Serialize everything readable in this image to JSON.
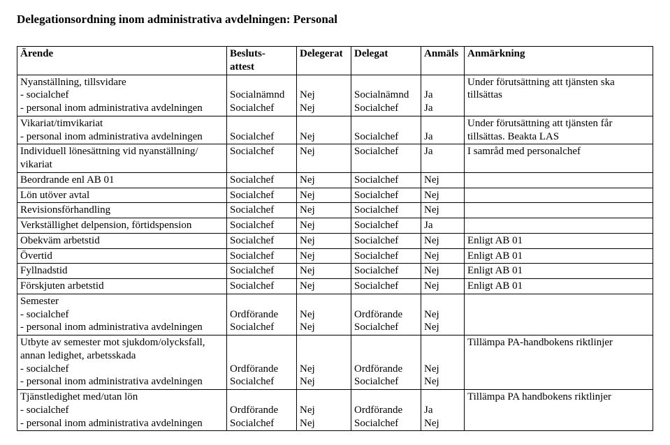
{
  "title": "Delegationsordning inom administrativa avdelningen: Personal",
  "headers": {
    "c1": "Ärende",
    "c2_l1": "Besluts-",
    "c2_l2": "attest",
    "c3": "Delegerat",
    "c4": "Delegat",
    "c5": "Anmäls",
    "c6": "Anmärkning"
  },
  "rows": [
    {
      "arende_lines": [
        "Nyanställning, tillsvidare",
        "- socialchef",
        "- personal inom administrativa avdelningen"
      ],
      "beslut_lines": [
        "",
        "Socialnämnd",
        "Socialchef"
      ],
      "delegerat_lines": [
        "",
        "Nej",
        "Nej"
      ],
      "delegat_lines": [
        "",
        "Socialnämnd",
        "Socialchef"
      ],
      "anmals_lines": [
        "",
        "Ja",
        "Ja"
      ],
      "anm_lines": [
        "Under förutsättning att tjänsten ska",
        "tillsättas"
      ]
    },
    {
      "arende_lines": [
        "Vikariat/timvikariat",
        "- personal inom administrativa avdelningen"
      ],
      "beslut_lines": [
        "",
        "Socialchef"
      ],
      "delegerat_lines": [
        "",
        "Nej"
      ],
      "delegat_lines": [
        "",
        "Socialchef"
      ],
      "anmals_lines": [
        "",
        "Ja"
      ],
      "anm_lines": [
        "Under förutsättning att tjänsten får",
        "tillsättas. Beakta LAS"
      ]
    },
    {
      "arende_lines": [
        "Individuell lönesättning vid nyanställning/",
        "vikariat"
      ],
      "beslut_lines": [
        "Socialchef"
      ],
      "delegerat_lines": [
        "Nej"
      ],
      "delegat_lines": [
        "Socialchef"
      ],
      "anmals_lines": [
        "Ja"
      ],
      "anm_lines": [
        "I samråd med personalchef"
      ]
    },
    {
      "arende_lines": [
        "Beordrande enl AB 01"
      ],
      "beslut_lines": [
        "Socialchef"
      ],
      "delegerat_lines": [
        "Nej"
      ],
      "delegat_lines": [
        "Socialchef"
      ],
      "anmals_lines": [
        "Nej"
      ],
      "anm_lines": [
        ""
      ]
    },
    {
      "arende_lines": [
        "Lön utöver avtal"
      ],
      "beslut_lines": [
        "Socialchef"
      ],
      "delegerat_lines": [
        "Nej"
      ],
      "delegat_lines": [
        "Socialchef"
      ],
      "anmals_lines": [
        "Nej"
      ],
      "anm_lines": [
        ""
      ]
    },
    {
      "arende_lines": [
        "Revisionsförhandling"
      ],
      "beslut_lines": [
        "Socialchef"
      ],
      "delegerat_lines": [
        "Nej"
      ],
      "delegat_lines": [
        "Socialchef"
      ],
      "anmals_lines": [
        "Nej"
      ],
      "anm_lines": [
        ""
      ]
    },
    {
      "arende_lines": [
        "Verkställighet delpension, förtidspension"
      ],
      "beslut_lines": [
        "Socialchef"
      ],
      "delegerat_lines": [
        "Nej"
      ],
      "delegat_lines": [
        "Socialchef"
      ],
      "anmals_lines": [
        "Ja"
      ],
      "anm_lines": [
        ""
      ]
    },
    {
      "arende_lines": [
        "Obekväm arbetstid"
      ],
      "beslut_lines": [
        "Socialchef"
      ],
      "delegerat_lines": [
        "Nej"
      ],
      "delegat_lines": [
        "Socialchef"
      ],
      "anmals_lines": [
        "Nej"
      ],
      "anm_lines": [
        "Enligt AB 01"
      ]
    },
    {
      "arende_lines": [
        "Övertid"
      ],
      "beslut_lines": [
        "Socialchef"
      ],
      "delegerat_lines": [
        "Nej"
      ],
      "delegat_lines": [
        "Socialchef"
      ],
      "anmals_lines": [
        "Nej"
      ],
      "anm_lines": [
        "Enligt AB 01"
      ]
    },
    {
      "arende_lines": [
        "Fyllnadstid"
      ],
      "beslut_lines": [
        "Socialchef"
      ],
      "delegerat_lines": [
        "Nej"
      ],
      "delegat_lines": [
        "Socialchef"
      ],
      "anmals_lines": [
        "Nej"
      ],
      "anm_lines": [
        "Enligt AB 01"
      ]
    },
    {
      "arende_lines": [
        "Förskjuten arbetstid"
      ],
      "beslut_lines": [
        "Socialchef"
      ],
      "delegerat_lines": [
        "Nej"
      ],
      "delegat_lines": [
        "Socialchef"
      ],
      "anmals_lines": [
        "Nej"
      ],
      "anm_lines": [
        "Enligt AB 01"
      ]
    },
    {
      "arende_lines": [
        "Semester",
        "-   socialchef",
        "-   personal inom administrativa avdelningen"
      ],
      "beslut_lines": [
        "",
        "Ordförande",
        "Socialchef"
      ],
      "delegerat_lines": [
        "",
        "Nej",
        "Nej"
      ],
      "delegat_lines": [
        "",
        "Ordförande",
        "Socialchef"
      ],
      "anmals_lines": [
        "",
        "Nej",
        "Nej"
      ],
      "anm_lines": [
        ""
      ]
    },
    {
      "arende_lines": [
        "Utbyte av semester mot sjukdom/olycksfall,",
        "annan ledighet, arbetsskada",
        "-   socialchef",
        "-   personal inom administrativa avdelningen"
      ],
      "beslut_lines": [
        "",
        "",
        "Ordförande",
        "Socialchef"
      ],
      "delegerat_lines": [
        "",
        "",
        "Nej",
        "Nej"
      ],
      "delegat_lines": [
        "",
        "",
        "Ordförande",
        "Socialchef"
      ],
      "anmals_lines": [
        "",
        "",
        "Nej",
        "Nej"
      ],
      "anm_lines": [
        "Tillämpa PA-handbokens riktlinjer"
      ]
    },
    {
      "arende_lines": [
        "Tjänstledighet med/utan lön",
        "-   socialchef",
        "-   personal inom administrativa avdelningen"
      ],
      "beslut_lines": [
        "",
        "Ordförande",
        "Socialchef"
      ],
      "delegerat_lines": [
        "",
        "Nej",
        "Nej"
      ],
      "delegat_lines": [
        "",
        "Ordförande",
        "Socialchef"
      ],
      "anmals_lines": [
        "",
        "Ja",
        "Nej"
      ],
      "anm_lines": [
        "Tillämpa PA handbokens riktlinjer"
      ]
    }
  ]
}
